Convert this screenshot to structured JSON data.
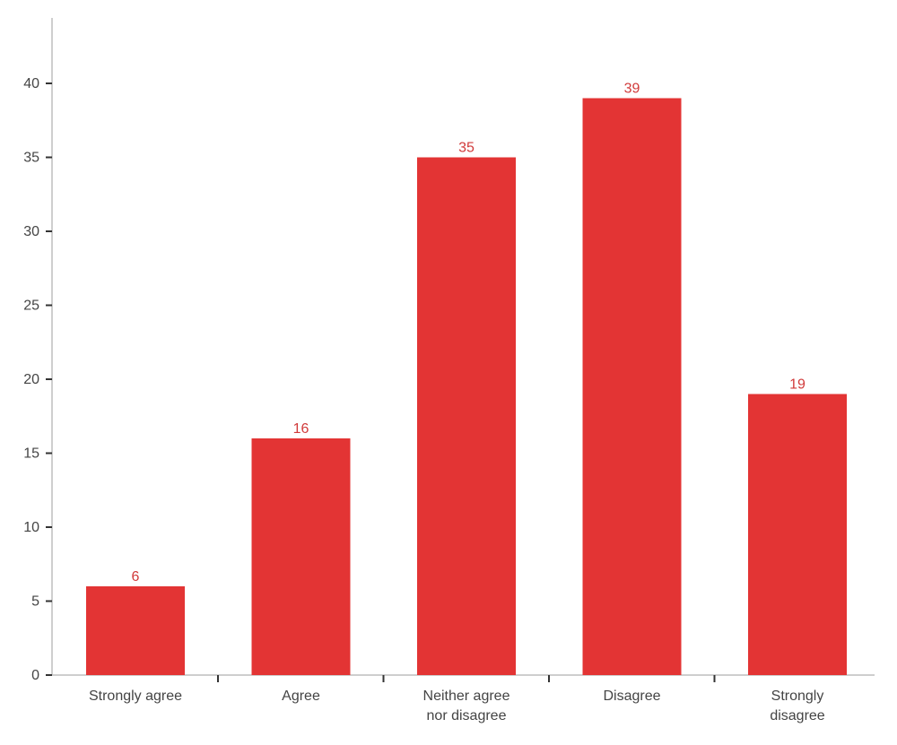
{
  "chart_data": {
    "type": "bar",
    "title": "",
    "xlabel": "",
    "ylabel": "",
    "categories": [
      [
        "Strongly agree"
      ],
      [
        "Agree"
      ],
      [
        "Neither agree",
        "nor disagree"
      ],
      [
        "Disagree"
      ],
      [
        "Strongly",
        "disagree"
      ]
    ],
    "values": [
      6,
      16,
      35,
      39,
      19
    ],
    "data_labels": [
      "6",
      "16",
      "35",
      "39",
      "19"
    ],
    "ylim": [
      0,
      43
    ],
    "yticks": [
      0,
      5,
      10,
      15,
      20,
      25,
      30,
      35,
      40
    ],
    "ytick_labels": [
      "0",
      "5",
      "10",
      "15",
      "20",
      "25",
      "30",
      "35",
      "40"
    ],
    "grid": false,
    "bar_color": "#e33434",
    "label_color": "#d13a3a"
  }
}
